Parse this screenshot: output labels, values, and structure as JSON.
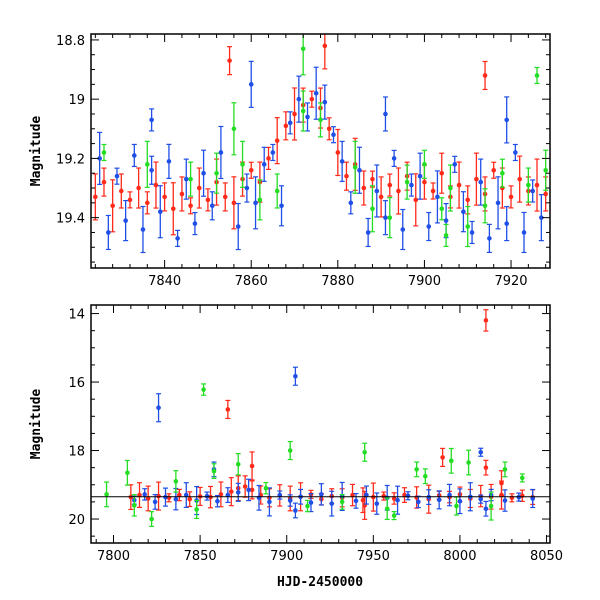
{
  "colors": {
    "red": "#ff2a1a",
    "blue": "#1f4fe6",
    "green": "#22dd22",
    "axis": "#000000"
  },
  "chart_data": [
    {
      "type": "scatter",
      "title": "",
      "xlabel": "",
      "ylabel": "Magnitude",
      "xlim": [
        7823,
        7929
      ],
      "ylim": [
        19.57,
        18.78
      ],
      "y_inverted": true,
      "xticks": [
        7840,
        7860,
        7880,
        7900,
        7920
      ],
      "xtick_labels": [
        "7840",
        "7860",
        "7880",
        "7900",
        "7920"
      ],
      "yticks": [
        18.8,
        19.0,
        19.2,
        19.4
      ],
      "ytick_labels": [
        "18.8",
        "19",
        "19.2",
        "19.4"
      ],
      "error_bars": true,
      "series": [
        {
          "color": "red",
          "points": [
            [
              7824,
              19.33
            ],
            [
              7826,
              19.28
            ],
            [
              7828,
              19.36
            ],
            [
              7830,
              19.31
            ],
            [
              7832,
              19.34
            ],
            [
              7834,
              19.3
            ],
            [
              7836,
              19.35
            ],
            [
              7838,
              19.29
            ],
            [
              7840,
              19.33
            ],
            [
              7842,
              19.37
            ],
            [
              7844,
              19.32
            ],
            [
              7846,
              19.36
            ],
            [
              7848,
              19.3
            ],
            [
              7850,
              19.34
            ],
            [
              7852,
              19.28
            ],
            [
              7854,
              19.33
            ],
            [
              7856,
              19.35
            ],
            [
              7858,
              19.27
            ],
            [
              7860,
              19.24
            ],
            [
              7862,
              19.28
            ],
            [
              7864,
              19.2
            ],
            [
              7866,
              19.14
            ],
            [
              7868,
              19.09
            ],
            [
              7870,
              19.05
            ],
            [
              7872,
              19.02
            ],
            [
              7874,
              19.0
            ],
            [
              7876,
              19.03
            ],
            [
              7878,
              19.1
            ],
            [
              7880,
              19.18
            ],
            [
              7882,
              19.26
            ],
            [
              7884,
              19.22
            ],
            [
              7886,
              19.3
            ],
            [
              7888,
              19.27
            ],
            [
              7890,
              19.33
            ],
            [
              7892,
              19.29
            ],
            [
              7894,
              19.31
            ],
            [
              7896,
              19.26
            ],
            [
              7898,
              19.34
            ],
            [
              7900,
              19.28
            ],
            [
              7902,
              19.31
            ],
            [
              7904,
              19.25
            ],
            [
              7906,
              19.33
            ],
            [
              7908,
              19.29
            ],
            [
              7910,
              19.34
            ],
            [
              7912,
              19.27
            ],
            [
              7914,
              19.32
            ],
            [
              7916,
              19.24
            ],
            [
              7918,
              19.3
            ],
            [
              7920,
              19.33
            ],
            [
              7922,
              19.27
            ],
            [
              7924,
              19.31
            ],
            [
              7926,
              19.29
            ],
            [
              7928,
              19.32
            ],
            [
              7855,
              18.87
            ],
            [
              7877,
              18.82
            ],
            [
              7914,
              18.92
            ]
          ]
        },
        {
          "color": "blue",
          "points": [
            [
              7825,
              19.2
            ],
            [
              7827,
              19.45
            ],
            [
              7829,
              19.26
            ],
            [
              7831,
              19.41
            ],
            [
              7833,
              19.19
            ],
            [
              7835,
              19.44
            ],
            [
              7837,
              19.24
            ],
            [
              7839,
              19.38
            ],
            [
              7841,
              19.21
            ],
            [
              7843,
              19.47
            ],
            [
              7845,
              19.27
            ],
            [
              7847,
              19.42
            ],
            [
              7849,
              19.25
            ],
            [
              7851,
              19.36
            ],
            [
              7853,
              19.18
            ],
            [
              7857,
              19.43
            ],
            [
              7859,
              19.3
            ],
            [
              7861,
              19.35
            ],
            [
              7863,
              19.22
            ],
            [
              7865,
              19.18
            ],
            [
              7867,
              19.36
            ],
            [
              7869,
              19.08
            ],
            [
              7871,
              19.0
            ],
            [
              7873,
              19.06
            ],
            [
              7875,
              18.98
            ],
            [
              7877,
              19.01
            ],
            [
              7879,
              19.12
            ],
            [
              7881,
              19.21
            ],
            [
              7883,
              19.35
            ],
            [
              7885,
              19.24
            ],
            [
              7887,
              19.45
            ],
            [
              7889,
              19.31
            ],
            [
              7891,
              19.4
            ],
            [
              7893,
              19.2
            ],
            [
              7895,
              19.44
            ],
            [
              7897,
              19.29
            ],
            [
              7899,
              19.26
            ],
            [
              7901,
              19.43
            ],
            [
              7903,
              19.33
            ],
            [
              7905,
              19.41
            ],
            [
              7907,
              19.22
            ],
            [
              7909,
              19.38
            ],
            [
              7911,
              19.45
            ],
            [
              7913,
              19.28
            ],
            [
              7915,
              19.47
            ],
            [
              7917,
              19.35
            ],
            [
              7919,
              19.42
            ],
            [
              7921,
              19.18
            ],
            [
              7923,
              19.45
            ],
            [
              7925,
              19.31
            ],
            [
              7927,
              19.4
            ],
            [
              7837,
              19.07
            ],
            [
              7860,
              18.95
            ],
            [
              7891,
              19.05
            ],
            [
              7919,
              19.07
            ]
          ]
        },
        {
          "color": "green",
          "points": [
            [
              7826,
              19.18
            ],
            [
              7836,
              19.22
            ],
            [
              7846,
              19.27
            ],
            [
              7852,
              19.25
            ],
            [
              7858,
              19.22
            ],
            [
              7862,
              19.34
            ],
            [
              7866,
              19.31
            ],
            [
              7872,
              19.04
            ],
            [
              7876,
              19.07
            ],
            [
              7884,
              19.23
            ],
            [
              7888,
              19.37
            ],
            [
              7892,
              19.4
            ],
            [
              7896,
              19.28
            ],
            [
              7900,
              19.22
            ],
            [
              7904,
              19.37
            ],
            [
              7906,
              19.3
            ],
            [
              7910,
              19.43
            ],
            [
              7914,
              19.36
            ],
            [
              7918,
              19.25
            ],
            [
              7924,
              19.29
            ],
            [
              7926,
              18.92
            ],
            [
              7928,
              19.24
            ],
            [
              7872,
              18.83
            ],
            [
              7856,
              19.1
            ],
            [
              7905,
              19.46
            ]
          ]
        }
      ]
    },
    {
      "type": "scatter",
      "title": "",
      "xlabel": "HJD-2450000",
      "ylabel": "Magnitude",
      "xlim": [
        7787,
        8052
      ],
      "ylim": [
        20.7,
        13.75
      ],
      "y_inverted": true,
      "xticks": [
        7800,
        7850,
        7900,
        7950,
        8000,
        8050
      ],
      "xtick_labels": [
        "7800",
        "7850",
        "7900",
        "7950",
        "8000",
        "8050"
      ],
      "yticks": [
        14,
        16,
        18,
        20
      ],
      "ytick_labels": [
        "14",
        "16",
        "18",
        "20"
      ],
      "hline": 19.35,
      "error_bars": true,
      "series": [
        {
          "color": "red",
          "points": [
            [
              7810,
              19.36
            ],
            [
              7815,
              19.3
            ],
            [
              7820,
              19.4
            ],
            [
              7826,
              19.33
            ],
            [
              7832,
              19.38
            ],
            [
              7838,
              19.3
            ],
            [
              7844,
              19.42
            ],
            [
              7850,
              19.34
            ],
            [
              7856,
              19.36
            ],
            [
              7862,
              19.28
            ],
            [
              7868,
              19.2
            ],
            [
              7872,
              19.1
            ],
            [
              7876,
              19.05
            ],
            [
              7880,
              19.15
            ],
            [
              7885,
              19.3
            ],
            [
              7890,
              19.38
            ],
            [
              7896,
              19.31
            ],
            [
              7902,
              19.4
            ],
            [
              7908,
              19.35
            ],
            [
              7914,
              19.28
            ],
            [
              7920,
              19.42
            ],
            [
              7926,
              19.33
            ],
            [
              7932,
              19.38
            ],
            [
              7938,
              19.3
            ],
            [
              7944,
              19.45
            ],
            [
              7950,
              19.36
            ],
            [
              7956,
              19.33
            ],
            [
              7962,
              19.4
            ],
            [
              7968,
              19.3
            ],
            [
              7975,
              19.37
            ],
            [
              7982,
              19.42
            ],
            [
              7988,
              19.31
            ],
            [
              7994,
              19.36
            ],
            [
              8000,
              19.28
            ],
            [
              8006,
              19.4
            ],
            [
              8012,
              19.33
            ],
            [
              8018,
              19.35
            ],
            [
              8024,
              19.3
            ],
            [
              8030,
              19.38
            ],
            [
              8036,
              19.32
            ],
            [
              8042,
              19.36
            ],
            [
              7866,
              16.8
            ],
            [
              7990,
              18.2
            ],
            [
              8015,
              18.5
            ],
            [
              8015,
              14.2
            ],
            [
              7945,
              19.6
            ],
            [
              7880,
              18.45
            ],
            [
              8024,
              18.95
            ]
          ]
        },
        {
          "color": "blue",
          "points": [
            [
              7812,
              19.45
            ],
            [
              7818,
              19.28
            ],
            [
              7824,
              19.5
            ],
            [
              7830,
              19.36
            ],
            [
              7836,
              19.42
            ],
            [
              7842,
              19.3
            ],
            [
              7848,
              19.46
            ],
            [
              7854,
              19.33
            ],
            [
              7860,
              19.48
            ],
            [
              7866,
              19.3
            ],
            [
              7872,
              19.22
            ],
            [
              7878,
              19.15
            ],
            [
              7884,
              19.38
            ],
            [
              7890,
              19.5
            ],
            [
              7896,
              19.3
            ],
            [
              7902,
              19.46
            ],
            [
              7908,
              19.35
            ],
            [
              7914,
              19.52
            ],
            [
              7920,
              19.28
            ],
            [
              7926,
              19.55
            ],
            [
              7932,
              19.34
            ],
            [
              7940,
              19.47
            ],
            [
              7946,
              19.3
            ],
            [
              7952,
              19.55
            ],
            [
              7958,
              19.38
            ],
            [
              7964,
              19.45
            ],
            [
              7970,
              19.32
            ],
            [
              7976,
              19.5
            ],
            [
              7982,
              19.36
            ],
            [
              7988,
              19.44
            ],
            [
              7994,
              19.3
            ],
            [
              8000,
              19.48
            ],
            [
              8006,
              19.35
            ],
            [
              8012,
              19.42
            ],
            [
              8018,
              19.3
            ],
            [
              8026,
              19.46
            ],
            [
              8034,
              19.36
            ],
            [
              8042,
              19.4
            ],
            [
              7826,
              16.75
            ],
            [
              7905,
              15.83
            ],
            [
              8012,
              18.05
            ],
            [
              7858,
              18.55
            ],
            [
              7905,
              19.75
            ],
            [
              8015,
              19.7
            ]
          ]
        },
        {
          "color": "green",
          "points": [
            [
              7796,
              19.28
            ],
            [
              7808,
              18.65
            ],
            [
              7812,
              19.6
            ],
            [
              7822,
              20.0
            ],
            [
              7836,
              18.9
            ],
            [
              7852,
              16.22
            ],
            [
              7858,
              18.6
            ],
            [
              7872,
              18.4
            ],
            [
              7888,
              19.1
            ],
            [
              7902,
              18.0
            ],
            [
              7912,
              19.62
            ],
            [
              7932,
              19.5
            ],
            [
              7945,
              18.05
            ],
            [
              7958,
              19.7
            ],
            [
              7975,
              18.55
            ],
            [
              7980,
              18.75
            ],
            [
              7995,
              18.3
            ],
            [
              7998,
              19.62
            ],
            [
              8005,
              18.35
            ],
            [
              8018,
              19.62
            ],
            [
              8026,
              18.55
            ],
            [
              8036,
              18.8
            ],
            [
              7848,
              19.72
            ],
            [
              7962,
              19.9
            ]
          ]
        }
      ]
    }
  ]
}
